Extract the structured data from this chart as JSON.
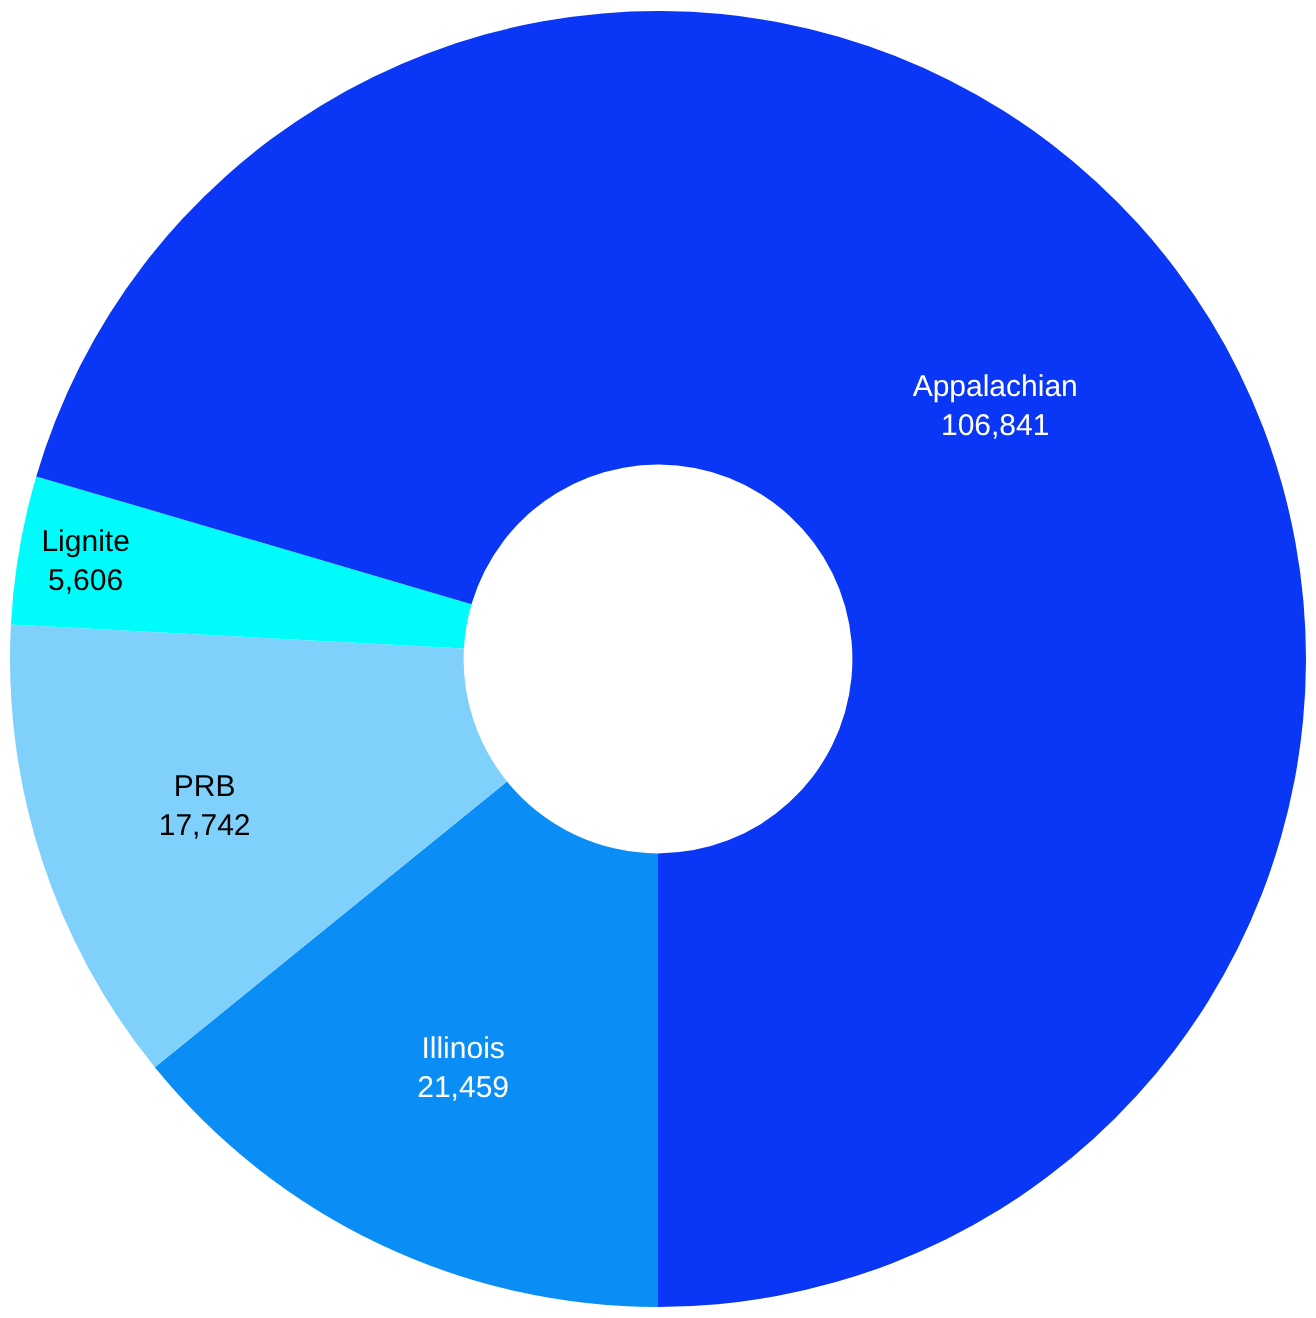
{
  "chart_data": {
    "type": "donut",
    "categories": [
      "Illinois",
      "PRB",
      "Lignite",
      "Appalachian"
    ],
    "values": [
      21459,
      17742,
      5606,
      106841
    ],
    "value_labels": [
      "21,459",
      "17,742",
      "5,606",
      "106,841"
    ],
    "colors": [
      "#0a8ef5",
      "#7fd1fb",
      "#00fbfb",
      "#0a37f5"
    ],
    "legend": false
  }
}
